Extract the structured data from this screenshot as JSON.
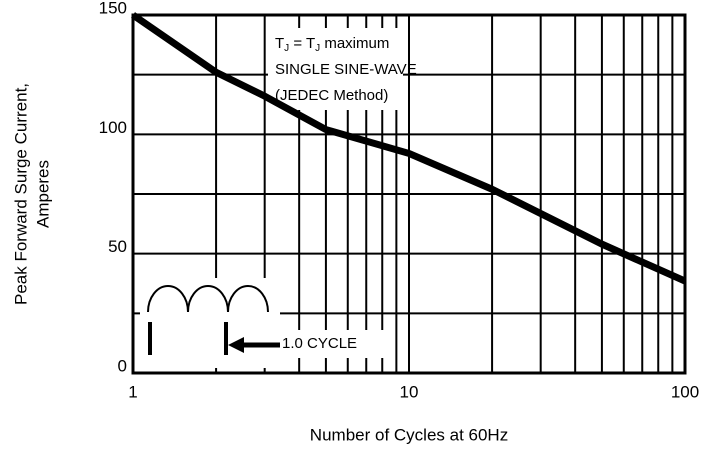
{
  "chart_data": {
    "type": "line",
    "x_label": "Number of Cycles at 60Hz",
    "y_label": [
      "Peak Forward Surge Current,",
      "Amperes"
    ],
    "x": [
      1,
      2,
      3,
      5,
      10,
      20,
      50,
      100
    ],
    "values": [
      150,
      126,
      116,
      102,
      92,
      77,
      54,
      38.5
    ],
    "color": "#000000",
    "xlog": true,
    "xlim": [
      1,
      100
    ],
    "xticks": [
      1,
      10,
      100
    ],
    "xgrid": [
      1,
      2,
      3,
      4,
      5,
      6,
      7,
      8,
      9,
      10,
      20,
      30,
      40,
      50,
      60,
      70,
      80,
      90,
      100
    ],
    "ylim": [
      0,
      150
    ],
    "yticks": [
      0,
      50,
      100,
      150
    ],
    "ygrid": [
      0,
      25,
      50,
      75,
      100,
      125,
      150
    ],
    "condition": {
      "t": "T",
      "sub": "J",
      "eq": " = T",
      "sub2": "J",
      "rest": " maximum"
    },
    "annotations": [
      "SINGLE SINE-WAVE",
      "(JEDEC Method)"
    ],
    "cycle_label": "1.0 CYCLE"
  }
}
